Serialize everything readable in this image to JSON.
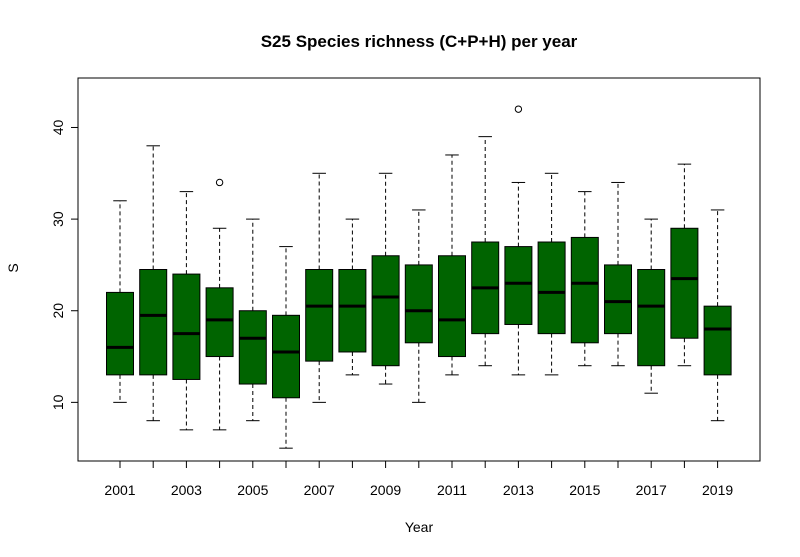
{
  "chart_data": {
    "type": "boxplot",
    "title": "S25 Species richness (C+P+H) per year",
    "xlabel": "Year",
    "ylabel": "S",
    "ylim": [
      3.6,
      45.4
    ],
    "yticks": [
      10,
      20,
      30,
      40
    ],
    "box_color": "#006400",
    "grid": false,
    "categories": [
      "2001",
      "2002",
      "2003",
      "2004",
      "2005",
      "2006",
      "2007",
      "2008",
      "2009",
      "2010",
      "2011",
      "2012",
      "2013",
      "2014",
      "2015",
      "2016",
      "2017",
      "2018",
      "2019"
    ],
    "shown_tick_labels": [
      "2001",
      "2003",
      "2005",
      "2007",
      "2009",
      "2011",
      "2013",
      "2015",
      "2017",
      "2019"
    ],
    "boxes": [
      {
        "year": "2001",
        "min": 10,
        "q1": 13,
        "median": 16,
        "q3": 22,
        "max": 32,
        "outliers": []
      },
      {
        "year": "2002",
        "min": 8,
        "q1": 13,
        "median": 19.5,
        "q3": 24.5,
        "max": 38,
        "outliers": []
      },
      {
        "year": "2003",
        "min": 7,
        "q1": 12.5,
        "median": 17.5,
        "q3": 24,
        "max": 33,
        "outliers": []
      },
      {
        "year": "2004",
        "min": 7,
        "q1": 15,
        "median": 19,
        "q3": 22.5,
        "max": 29,
        "outliers": [
          34
        ]
      },
      {
        "year": "2005",
        "min": 8,
        "q1": 12,
        "median": 17,
        "q3": 20,
        "max": 30,
        "outliers": []
      },
      {
        "year": "2006",
        "min": 5,
        "q1": 10.5,
        "median": 15.5,
        "q3": 19.5,
        "max": 27,
        "outliers": []
      },
      {
        "year": "2007",
        "min": 10,
        "q1": 14.5,
        "median": 20.5,
        "q3": 24.5,
        "max": 35,
        "outliers": []
      },
      {
        "year": "2008",
        "min": 13,
        "q1": 15.5,
        "median": 20.5,
        "q3": 24.5,
        "max": 30,
        "outliers": []
      },
      {
        "year": "2009",
        "min": 12,
        "q1": 14,
        "median": 21.5,
        "q3": 26,
        "max": 35,
        "outliers": []
      },
      {
        "year": "2010",
        "min": 10,
        "q1": 16.5,
        "median": 20,
        "q3": 25,
        "max": 31,
        "outliers": []
      },
      {
        "year": "2011",
        "min": 13,
        "q1": 15,
        "median": 19,
        "q3": 26,
        "max": 37,
        "outliers": []
      },
      {
        "year": "2012",
        "min": 14,
        "q1": 17.5,
        "median": 22.5,
        "q3": 27.5,
        "max": 39,
        "outliers": []
      },
      {
        "year": "2013",
        "min": 13,
        "q1": 18.5,
        "median": 23,
        "q3": 27,
        "max": 34,
        "outliers": [
          42
        ]
      },
      {
        "year": "2014",
        "min": 13,
        "q1": 17.5,
        "median": 22,
        "q3": 27.5,
        "max": 35,
        "outliers": []
      },
      {
        "year": "2015",
        "min": 14,
        "q1": 16.5,
        "median": 23,
        "q3": 28,
        "max": 33,
        "outliers": []
      },
      {
        "year": "2016",
        "min": 14,
        "q1": 17.5,
        "median": 21,
        "q3": 25,
        "max": 34,
        "outliers": []
      },
      {
        "year": "2017",
        "min": 11,
        "q1": 14,
        "median": 20.5,
        "q3": 24.5,
        "max": 30,
        "outliers": []
      },
      {
        "year": "2018",
        "min": 14,
        "q1": 17,
        "median": 23.5,
        "q3": 29,
        "max": 36,
        "outliers": []
      },
      {
        "year": "2019",
        "min": 8,
        "q1": 13,
        "median": 18,
        "q3": 20.5,
        "max": 31,
        "outliers": []
      }
    ]
  }
}
